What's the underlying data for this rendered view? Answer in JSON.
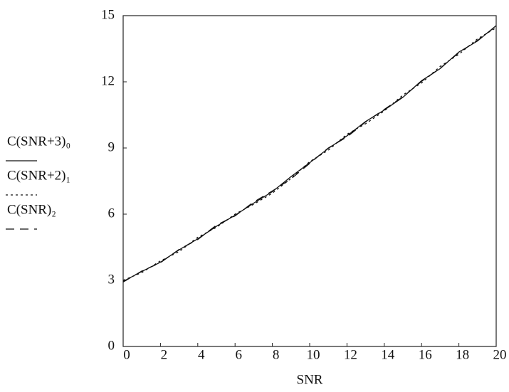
{
  "chart_data": {
    "type": "line",
    "x_label": "SNR",
    "x": [
      0,
      1,
      2,
      3,
      4,
      5,
      6,
      7,
      8,
      9,
      10,
      11,
      12,
      13,
      14,
      15,
      16,
      17,
      18,
      19,
      20
    ],
    "series": [
      {
        "name": "C(SNR+3)₀",
        "color": "#111111",
        "dash": "solid",
        "values": [
          2.95,
          3.4,
          3.82,
          4.38,
          4.88,
          5.45,
          5.95,
          6.5,
          7.02,
          7.7,
          8.33,
          8.98,
          9.55,
          10.2,
          10.72,
          11.3,
          12.05,
          12.6,
          13.35,
          13.85,
          14.55
        ]
      },
      {
        "name": "C(SNR+2)₁",
        "color": "#111111",
        "dash": "dotted",
        "values": [
          3.0,
          3.35,
          3.88,
          4.3,
          4.95,
          5.4,
          6.0,
          6.45,
          6.95,
          7.62,
          8.38,
          8.9,
          9.62,
          10.1,
          10.68,
          11.4,
          11.95,
          12.7,
          13.25,
          13.95,
          14.45
        ]
      },
      {
        "name": "C(SNR)₂",
        "color": "#111111",
        "dash": "dashed",
        "values": [
          2.92,
          3.42,
          3.8,
          4.4,
          4.85,
          5.5,
          5.92,
          6.55,
          7.05,
          7.6,
          8.3,
          9.0,
          9.5,
          10.18,
          10.75,
          11.32,
          12.02,
          12.62,
          13.32,
          13.88,
          14.52
        ]
      }
    ],
    "xlim": [
      0,
      20
    ],
    "xticks": [
      0,
      2,
      4,
      6,
      8,
      10,
      12,
      14,
      16,
      18,
      20
    ],
    "ylim": [
      0,
      15
    ],
    "yticks": [
      0,
      3,
      6,
      9,
      12,
      15
    ],
    "grid": false,
    "legend": "left"
  }
}
